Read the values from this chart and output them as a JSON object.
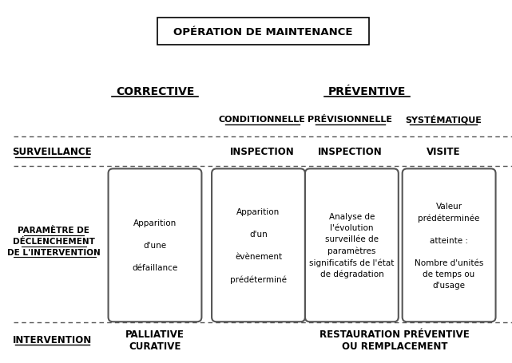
{
  "title": "OPÉRATION DE MAINTENANCE",
  "corrective_label": "CORRECTIVE",
  "preventive_label": "PRÉVENTIVE",
  "conditionnelle_label": "CONDITIONNELLE",
  "previsionnelle_label": "PRÉVISIONNELLE",
  "systematique_label": "SYSTÉMATIQUE",
  "surveillance_label": "SURVEILLANCE",
  "inspection1_label": "INSPECTION",
  "inspection2_label": "INSPECTION",
  "visite_label": "VISITE",
  "parametre_label": "PARAMÈTRE DE\nDÉCLENCHEMENT\nDE L'INTERVENTION",
  "box1_text": "Apparition\n\nd'une\n\ndéfaillance",
  "box2_text": "Apparition\n\nd'un\n\nèvènement\n\nprédéterminé",
  "box3_text": "Analyse de\nl'évolution\nsurveillée de\nparamètres\nsignificatifs de l'état\nde dégradation",
  "box4_text": "Valeur\nprédéterminée\n\natteinte :\n\nNombre d'unités\nde temps ou\nd'usage",
  "intervention_label": "INTERVENTION",
  "palliative_label": "PALLIATIVE\nCURATIVE",
  "restauration_label": "RESTAURATION PRÉVENTIVE\nOU REMPLACEMENT",
  "bg_color": "#ffffff",
  "text_color": "#000000",
  "box_edge_color": "#555555",
  "dashed_line_color": "#555555"
}
